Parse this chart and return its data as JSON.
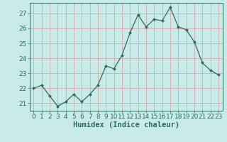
{
  "x": [
    0,
    1,
    2,
    3,
    4,
    5,
    6,
    7,
    8,
    9,
    10,
    11,
    12,
    13,
    14,
    15,
    16,
    17,
    18,
    19,
    20,
    21,
    22,
    23
  ],
  "y": [
    22.0,
    22.2,
    21.5,
    20.8,
    21.1,
    21.6,
    21.1,
    21.6,
    22.2,
    23.5,
    23.3,
    24.2,
    25.7,
    26.9,
    26.1,
    26.6,
    26.5,
    27.4,
    26.1,
    25.9,
    25.1,
    23.7,
    23.2,
    22.9
  ],
  "line_color": "#2e6b5e",
  "marker": "D",
  "marker_size": 2.0,
  "background_color": "#c8eae8",
  "grid_color": "#b8d8d4",
  "grid_color_major": "#c0b8b8",
  "tick_color": "#2e6b5e",
  "xlabel": "Humidex (Indice chaleur)",
  "ylim": [
    20.5,
    27.7
  ],
  "xlim": [
    -0.5,
    23.5
  ],
  "yticks": [
    21,
    22,
    23,
    24,
    25,
    26,
    27
  ],
  "xticks": [
    0,
    1,
    2,
    3,
    4,
    5,
    6,
    7,
    8,
    9,
    10,
    11,
    12,
    13,
    14,
    15,
    16,
    17,
    18,
    19,
    20,
    21,
    22,
    23
  ],
  "xlabel_fontsize": 7.5,
  "tick_fontsize": 6.5
}
